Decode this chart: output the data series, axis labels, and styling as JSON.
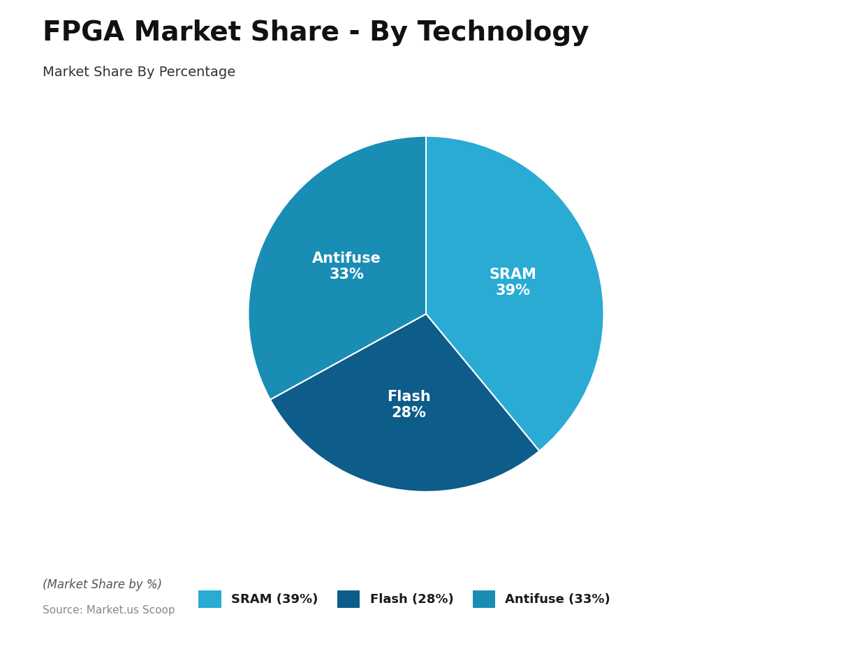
{
  "title": "FPGA Market Share - By Technology",
  "subtitle": "Market Share By Percentage",
  "labels": [
    "SRAM",
    "Flash",
    "Antifuse"
  ],
  "values": [
    39,
    28,
    33
  ],
  "colors": [
    "#29ABD4",
    "#0D5C8A",
    "#1A8DB5"
  ],
  "text_color": "#ffffff",
  "legend_labels": [
    "SRAM (39%)",
    "Flash (28%)",
    "Antifuse (33%)"
  ],
  "footnote": "(Market Share by %)",
  "source": "Source: Market.us Scoop",
  "background_color": "#ffffff",
  "title_fontsize": 28,
  "subtitle_fontsize": 14,
  "label_fontsize": 15,
  "startangle": 90
}
